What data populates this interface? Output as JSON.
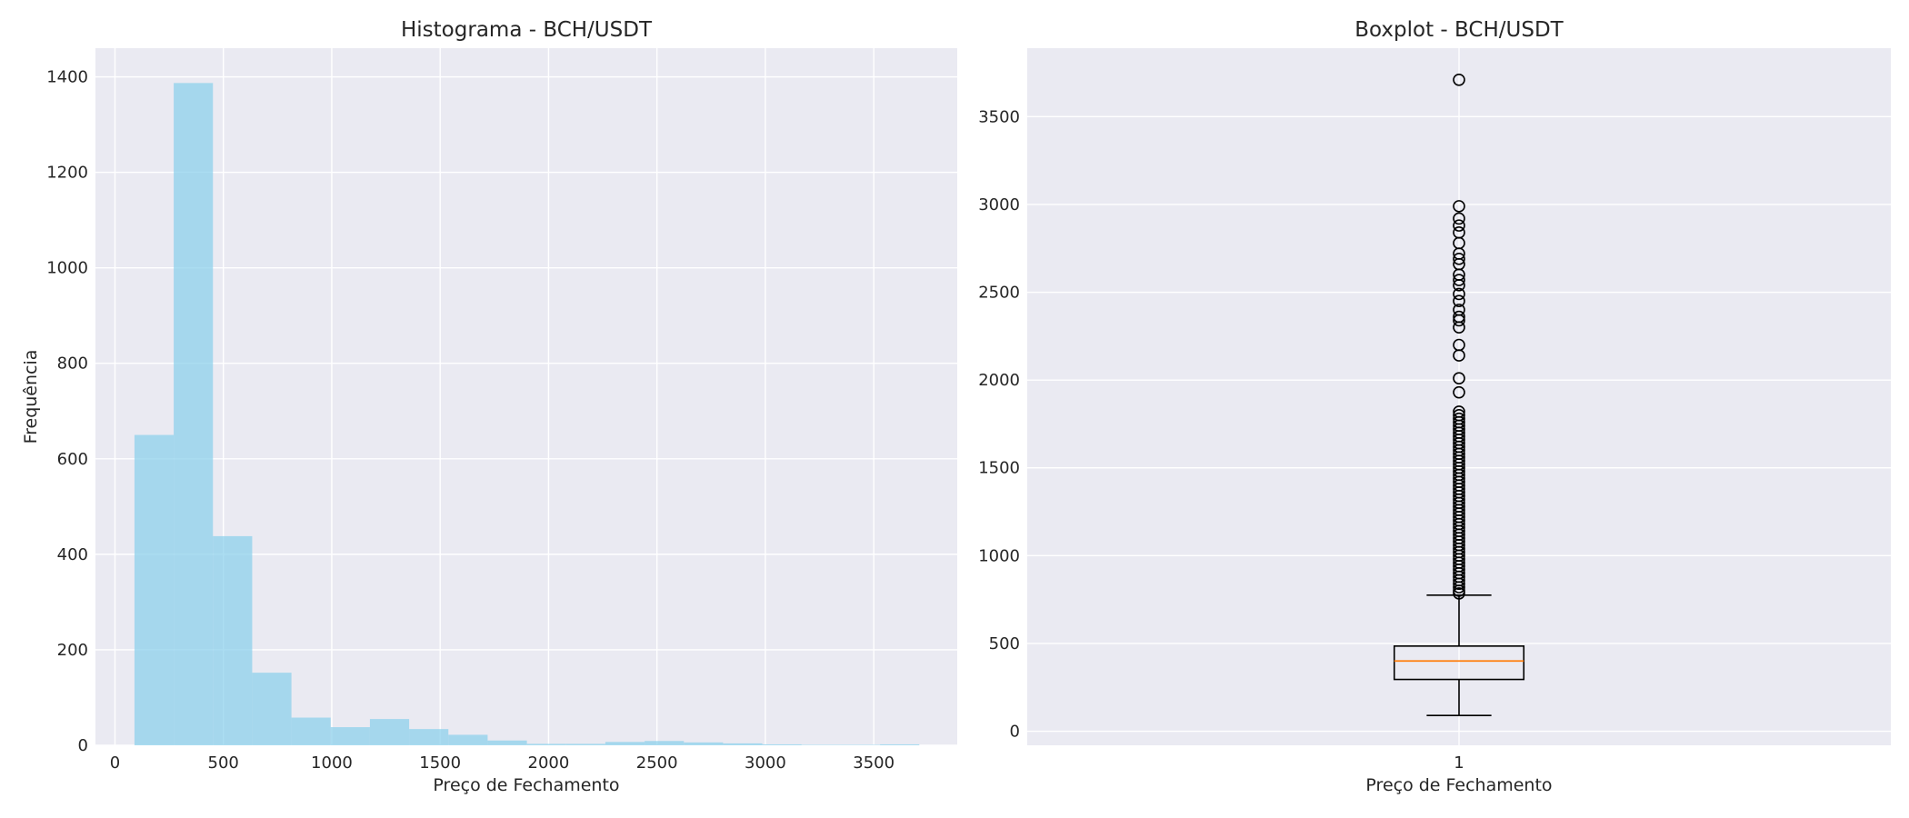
{
  "chart_data": [
    {
      "type": "bar",
      "subtype": "histogram",
      "title": "Histograma - BCH/USDT",
      "xlabel": "Preço de Fechamento",
      "ylabel": "Frequência",
      "xlim": [
        -90,
        3885
      ],
      "ylim": [
        0,
        1460
      ],
      "xticks": [
        0,
        500,
        1000,
        1500,
        2000,
        2500,
        3000,
        3500
      ],
      "yticks": [
        0,
        200,
        400,
        600,
        800,
        1000,
        1200,
        1400
      ],
      "bin_width": 181,
      "bin_starts": [
        90,
        271,
        452,
        633,
        814,
        995,
        1176,
        1357,
        1538,
        1719,
        1900,
        2081,
        2262,
        2443,
        2624,
        2805,
        2986,
        3167,
        3348,
        3529
      ],
      "values": [
        650,
        1387,
        438,
        152,
        58,
        38,
        55,
        34,
        22,
        10,
        3,
        3,
        7,
        9,
        6,
        4,
        2,
        1,
        1,
        2
      ],
      "color": "#87ceeb",
      "grid": true
    },
    {
      "type": "box",
      "title": "Boxplot - BCH/USDT",
      "xlabel": "Preço de Fechamento",
      "ylabel": "",
      "categories": [
        "1"
      ],
      "xlim": [
        0.5,
        1.5
      ],
      "ylim": [
        -80,
        3890
      ],
      "yticks": [
        0,
        500,
        1000,
        1500,
        2000,
        2500,
        3000,
        3500
      ],
      "box": {
        "whisker_low": 90,
        "q1": 295,
        "median": 400,
        "q3": 485,
        "whisker_high": 775
      },
      "outliers": [
        3710,
        2990,
        2920,
        2880,
        2840,
        2780,
        2720,
        2690,
        2660,
        2600,
        2570,
        2540,
        2490,
        2450,
        2400,
        2360,
        2340,
        2300,
        2200,
        2140,
        2010,
        1930,
        1820,
        1800,
        1780,
        1760,
        1740,
        1720,
        1700,
        1680,
        1660,
        1640,
        1620,
        1600,
        1580,
        1560,
        1540,
        1520,
        1500,
        1480,
        1460,
        1440,
        1420,
        1400,
        1380,
        1360,
        1340,
        1320,
        1300,
        1280,
        1260,
        1240,
        1220,
        1200,
        1180,
        1160,
        1140,
        1120,
        1100,
        1080,
        1060,
        1040,
        1020,
        1000,
        980,
        960,
        940,
        920,
        900,
        880,
        860,
        840,
        820,
        800,
        785
      ],
      "median_color": "#ff7f0e",
      "grid": true
    }
  ]
}
